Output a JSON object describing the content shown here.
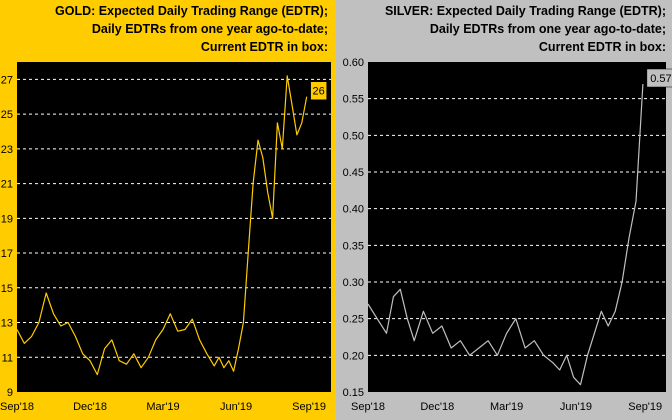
{
  "chart_data": [
    {
      "type": "line",
      "panel": "gold",
      "title_lines": [
        "GOLD:  Expected Daily Trading Range (EDTR);",
        "Daily EDTRs from one year ago-to-date;",
        "Current EDTR in box:"
      ],
      "categories": [
        "Sep'18",
        "Dec'18",
        "Mar'19",
        "Jun'19",
        "Sep'19"
      ],
      "y_ticks": [
        "27",
        "25",
        "23",
        "21",
        "19",
        "17",
        "15",
        "13",
        "11",
        "9"
      ],
      "ylim": [
        9,
        28
      ],
      "xlim": [
        0,
        12.9
      ],
      "current_value": "26",
      "colors": {
        "background": "#FFCC00",
        "plot": "#000000",
        "line": "#FFCC00",
        "grid": "#FFFFFF",
        "box": "#FFCC00"
      },
      "series": [
        {
          "name": "Gold EDTR",
          "x": [
            0,
            0.3,
            0.6,
            0.9,
            1.2,
            1.5,
            1.8,
            2.1,
            2.4,
            2.7,
            3.0,
            3.3,
            3.6,
            3.9,
            4.2,
            4.5,
            4.8,
            5.1,
            5.4,
            5.7,
            6.0,
            6.3,
            6.6,
            6.9,
            7.2,
            7.5,
            7.8,
            8.1,
            8.3,
            8.5,
            8.7,
            8.9,
            9.1,
            9.3,
            9.5,
            9.7,
            9.9,
            10.1,
            10.3,
            10.5,
            10.7,
            10.9,
            11.1,
            11.3,
            11.5,
            11.7,
            11.9
          ],
          "values": [
            12.6,
            11.8,
            12.2,
            13.0,
            14.7,
            13.5,
            12.8,
            13.0,
            12.2,
            11.2,
            10.8,
            10.0,
            11.5,
            12.0,
            10.8,
            10.6,
            11.2,
            10.4,
            11.0,
            12.0,
            12.6,
            13.5,
            12.5,
            12.6,
            13.2,
            12.0,
            11.2,
            10.5,
            11.0,
            10.4,
            10.8,
            10.2,
            11.5,
            13.0,
            17.0,
            21.0,
            23.5,
            22.5,
            20.5,
            19.0,
            24.5,
            23.0,
            27.2,
            25.5,
            23.8,
            24.5,
            26.0
          ]
        }
      ]
    },
    {
      "type": "line",
      "panel": "silver",
      "title_lines": [
        "SILVER:  Expected Daily Trading Range (EDTR);",
        "Daily EDTRs from one year ago-to-date;",
        "Current EDTR in box:"
      ],
      "categories": [
        "Sep'18",
        "Dec'18",
        "Mar'19",
        "Jun'19",
        "Sep'19"
      ],
      "y_ticks": [
        "0.60",
        "0.55",
        "0.50",
        "0.45",
        "0.40",
        "0.35",
        "0.30",
        "0.25",
        "0.20",
        "0.15"
      ],
      "ylim": [
        0.15,
        0.6
      ],
      "xlim": [
        0,
        12.9
      ],
      "current_value": "0.57",
      "colors": {
        "background": "#C0C0C0",
        "plot": "#000000",
        "line": "#C0C0C0",
        "grid": "#FFFFFF",
        "box": "#C0C0C0"
      },
      "series": [
        {
          "name": "Silver EDTR",
          "x": [
            0,
            0.4,
            0.8,
            1.1,
            1.4,
            1.7,
            2.0,
            2.4,
            2.8,
            3.2,
            3.6,
            4.0,
            4.4,
            4.8,
            5.2,
            5.6,
            6.0,
            6.4,
            6.8,
            7.2,
            7.6,
            8.0,
            8.3,
            8.6,
            8.9,
            9.2,
            9.5,
            9.8,
            10.1,
            10.4,
            10.7,
            11.0,
            11.3,
            11.6,
            11.9
          ],
          "values": [
            0.27,
            0.25,
            0.23,
            0.28,
            0.29,
            0.25,
            0.22,
            0.26,
            0.23,
            0.24,
            0.21,
            0.22,
            0.2,
            0.21,
            0.22,
            0.2,
            0.23,
            0.25,
            0.21,
            0.22,
            0.2,
            0.19,
            0.18,
            0.2,
            0.17,
            0.16,
            0.2,
            0.23,
            0.26,
            0.24,
            0.26,
            0.3,
            0.36,
            0.41,
            0.57
          ]
        }
      ]
    }
  ]
}
